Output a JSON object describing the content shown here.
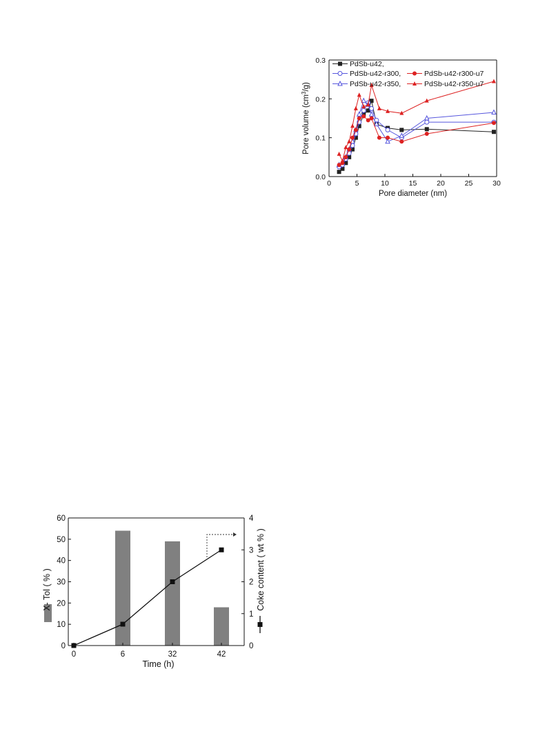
{
  "chart_data": [
    {
      "type": "line",
      "title": "",
      "xlabel": "Pore diameter (nm)",
      "ylabel": "Pore volume (cm³/g)",
      "xlim": [
        0,
        30
      ],
      "ylim": [
        0,
        0.3
      ],
      "xticks": [
        "0",
        "5",
        "10",
        "15",
        "20",
        "25",
        "30"
      ],
      "yticks": [
        "0.0",
        "0.1",
        "0.2",
        "0.3"
      ],
      "legend_position": "top-left",
      "series": [
        {
          "name": "PdSb-u42,",
          "color": "#222222",
          "marker": "square-filled",
          "x": [
            1.8,
            2.4,
            3.0,
            3.6,
            4.2,
            4.8,
            5.4,
            6.2,
            7.0,
            7.6,
            8.5,
            10.5,
            13.0,
            17.5,
            29.5
          ],
          "y": [
            0.012,
            0.02,
            0.035,
            0.05,
            0.07,
            0.1,
            0.13,
            0.16,
            0.17,
            0.195,
            0.135,
            0.125,
            0.12,
            0.122,
            0.115
          ]
        },
        {
          "name": "PdSb-u42-r300,",
          "color": "#5555dd",
          "marker": "circle-open",
          "x": [
            1.8,
            2.4,
            3.0,
            3.6,
            4.2,
            4.8,
            5.4,
            6.2,
            7.0,
            7.6,
            8.5,
            10.5,
            13.0,
            17.5,
            29.5
          ],
          "y": [
            0.025,
            0.03,
            0.045,
            0.06,
            0.08,
            0.11,
            0.14,
            0.17,
            0.19,
            0.175,
            0.145,
            0.12,
            0.1,
            0.14,
            0.14
          ]
        },
        {
          "name": "PdSb-u42-r350,",
          "color": "#5555dd",
          "marker": "triangle-open",
          "x": [
            1.8,
            2.4,
            3.0,
            3.6,
            4.2,
            4.8,
            5.4,
            6.2,
            7.0,
            7.6,
            8.5,
            10.5,
            13.0,
            17.5,
            29.5
          ],
          "y": [
            0.03,
            0.035,
            0.05,
            0.07,
            0.09,
            0.12,
            0.16,
            0.195,
            0.185,
            0.16,
            0.135,
            0.09,
            0.105,
            0.15,
            0.165
          ]
        },
        {
          "name": "PdSb-u42-r300-u7",
          "color": "#dd2222",
          "marker": "circle-filled",
          "x": [
            1.8,
            2.4,
            3.0,
            3.6,
            4.2,
            4.8,
            5.4,
            6.2,
            7.0,
            7.6,
            9.0,
            10.5,
            13.0,
            17.5,
            29.5
          ],
          "y": [
            0.03,
            0.035,
            0.05,
            0.07,
            0.1,
            0.12,
            0.15,
            0.155,
            0.145,
            0.15,
            0.1,
            0.1,
            0.09,
            0.11,
            0.138
          ]
        },
        {
          "name": "PdSb-u42-r350-u7",
          "color": "#dd2222",
          "marker": "triangle-filled",
          "x": [
            1.8,
            2.4,
            3.0,
            3.6,
            4.2,
            4.8,
            5.4,
            6.2,
            7.0,
            7.6,
            9.0,
            10.5,
            13.0,
            17.5,
            29.5
          ],
          "y": [
            0.058,
            0.04,
            0.075,
            0.09,
            0.13,
            0.175,
            0.21,
            0.18,
            0.185,
            0.235,
            0.175,
            0.168,
            0.163,
            0.195,
            0.245
          ]
        }
      ]
    },
    {
      "type": "bar+line",
      "title": "",
      "xlabel": "Time (h)",
      "ylabel_left": "X- Tol ( % )",
      "ylabel_right": "Coke content ( wt % )",
      "categories": [
        "0",
        "6",
        "32",
        "42"
      ],
      "ylim_left": [
        0,
        60
      ],
      "ylim_right": [
        0,
        4
      ],
      "yticks_left": [
        "0",
        "10",
        "20",
        "30",
        "40",
        "50",
        "60"
      ],
      "yticks_right": [
        "0",
        "1",
        "2",
        "3",
        "4"
      ],
      "bar_color": "#808080",
      "line_color": "#111111",
      "series": [
        {
          "name": "X- Tol ( % )",
          "type": "bar",
          "axis": "left",
          "values": [
            0,
            54,
            49,
            18
          ]
        },
        {
          "name": "Coke content ( wt % )",
          "type": "line",
          "axis": "right",
          "marker": "square-filled",
          "values": [
            0,
            0.67,
            2.0,
            3.0
          ]
        }
      ]
    }
  ]
}
